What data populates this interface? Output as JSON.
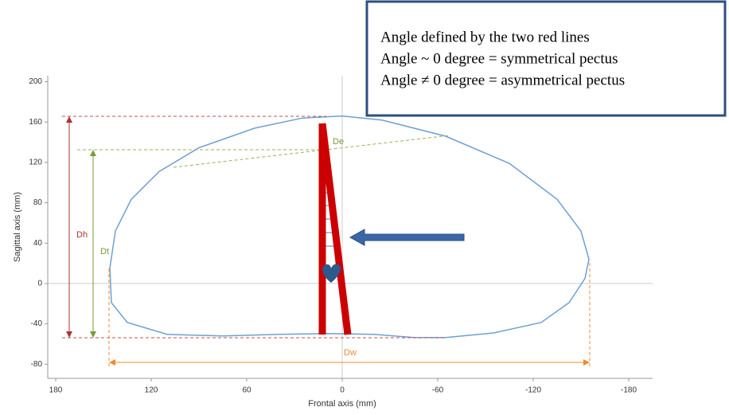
{
  "chart_data": {
    "type": "line",
    "x_label": "Frontal axis (mm)",
    "y_label": "Sagittal axis (mm)",
    "x": [
      146,
      142.5,
      132.5,
      115,
      90,
      55,
      25,
      0,
      -25,
      -65,
      -105,
      -135,
      -150,
      -155,
      -152.5,
      -142.5,
      -125,
      -95,
      -65,
      -45,
      -20,
      10,
      40,
      75,
      110,
      135,
      145
    ],
    "y": [
      15,
      52,
      83.5,
      111,
      134.6,
      154,
      164,
      166,
      162,
      146,
      119,
      83.5,
      52,
      24,
      5,
      -19,
      -38.6,
      -49,
      -53.5,
      -53.5,
      -50.4,
      -49.6,
      -50.4,
      -52,
      -50.4,
      -38.6,
      -19
    ],
    "color": "#6f9fd0",
    "xlim": [
      185,
      -195
    ],
    "ylim": [
      -94,
      206
    ],
    "xticks": [
      180,
      120,
      60,
      0,
      -60,
      -120,
      -180
    ],
    "yticks": [
      -80,
      -40,
      0,
      40,
      80,
      120,
      160,
      200
    ],
    "annotations": [
      "Dh",
      "Dt",
      "De",
      "Dw"
    ],
    "note": [
      "Angle defined by the two red lines",
      "Angle ~ 0 degree = symmetrical pectus",
      "Angle ≠ 0 degree = asymmetrical pectus"
    ]
  }
}
